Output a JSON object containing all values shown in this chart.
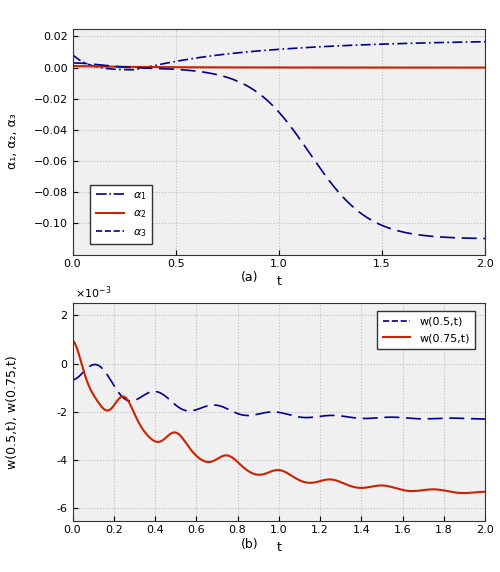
{
  "fig_width": 5.0,
  "fig_height": 5.72,
  "dpi": 100,
  "background_color": "#ffffff",
  "subplot_a": {
    "xlim": [
      0,
      2
    ],
    "ylim": [
      -0.12,
      0.025
    ],
    "yticks": [
      0.02,
      0,
      -0.02,
      -0.04,
      -0.06,
      -0.08,
      -0.1
    ],
    "xticks": [
      0,
      0.5,
      1.0,
      1.5,
      2.0
    ],
    "xlabel": "t",
    "ylabel": "α₁, α₂, α₃",
    "caption": "(a)",
    "grid_color": "#bbbbbb",
    "alpha1_color": "#00008B",
    "alpha2_color": "#cc2200",
    "alpha3_color": "#00008B",
    "axes_facecolor": "#f0f0f0"
  },
  "subplot_b": {
    "xlim": [
      0,
      2
    ],
    "ylim": [
      -0.0065,
      0.0025
    ],
    "yticks": [
      0.002,
      0,
      -0.002,
      -0.004,
      -0.006
    ],
    "xticks": [
      0,
      0.2,
      0.4,
      0.6,
      0.8,
      1.0,
      1.2,
      1.4,
      1.6,
      1.8,
      2.0
    ],
    "xlabel": "t",
    "ylabel": "w(0.5,t), w(0.75,t)",
    "caption": "(b)",
    "grid_color": "#bbbbbb",
    "w05_color": "#00008B",
    "w075_color": "#cc2200",
    "axes_facecolor": "#f0f0f0"
  }
}
